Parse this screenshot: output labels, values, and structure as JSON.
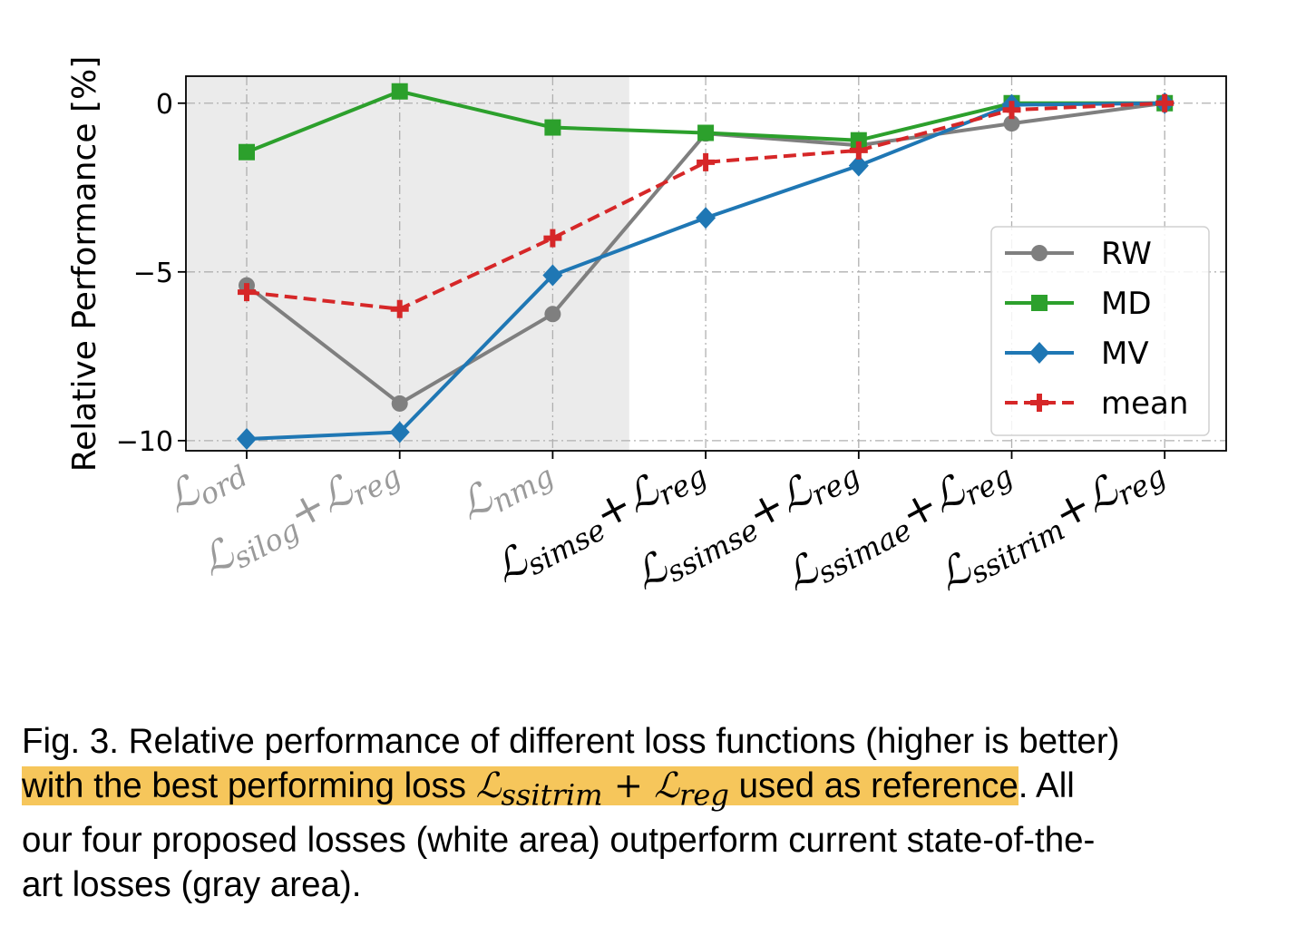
{
  "chart_data": {
    "type": "line",
    "title": "",
    "xlabel": "",
    "ylabel": "Relative Performance [%]",
    "ylim": [
      -10.3,
      0.8
    ],
    "yticks": [
      {
        "value": 0,
        "label": "0"
      },
      {
        "value": -5,
        "label": "−5"
      },
      {
        "value": -10,
        "label": "−10"
      }
    ],
    "categories": [
      {
        "main": "ℒ",
        "sub": "ord",
        "tail": "",
        "tail_sub": "",
        "state": "baseline"
      },
      {
        "main": "ℒ",
        "sub": "silog",
        "tail": "+ℒ",
        "tail_sub": "reg",
        "state": "baseline"
      },
      {
        "main": "ℒ",
        "sub": "nmg",
        "tail": "",
        "tail_sub": "",
        "state": "baseline"
      },
      {
        "main": "ℒ",
        "sub": "simse",
        "tail": "+ℒ",
        "tail_sub": "reg",
        "state": "proposed"
      },
      {
        "main": "ℒ",
        "sub": "ssimse",
        "tail": "+ℒ",
        "tail_sub": "reg",
        "state": "proposed"
      },
      {
        "main": "ℒ",
        "sub": "ssimae",
        "tail": "+ℒ",
        "tail_sub": "reg",
        "state": "proposed"
      },
      {
        "main": "ℒ",
        "sub": "ssitrim",
        "tail": "+ℒ",
        "tail_sub": "reg",
        "state": "proposed"
      }
    ],
    "shaded_region": {
      "from_category": 0,
      "to_category": 2,
      "color": "#ebebeb"
    },
    "series": [
      {
        "name": "RW",
        "color": "#7f7f7f",
        "marker": "circle",
        "dash": false,
        "values": [
          -5.4,
          -8.9,
          -6.25,
          -0.9,
          -1.25,
          -0.6,
          0
        ]
      },
      {
        "name": "MD",
        "color": "#2ca02c",
        "marker": "square",
        "dash": false,
        "values": [
          -1.45,
          0.35,
          -0.72,
          -0.88,
          -1.1,
          0,
          0
        ]
      },
      {
        "name": "MV",
        "color": "#1f77b4",
        "marker": "diamond",
        "dash": false,
        "values": [
          -9.95,
          -9.75,
          -5.1,
          -3.4,
          -1.85,
          -0.05,
          0
        ]
      },
      {
        "name": "mean",
        "color": "#d62728",
        "marker": "plus",
        "dash": true,
        "values": [
          -5.6,
          -6.1,
          -4.0,
          -1.75,
          -1.4,
          -0.2,
          0
        ]
      }
    ],
    "grid": true,
    "legend_position": "center-right"
  },
  "caption": {
    "line1": "Fig. 3. Relative performance of different loss functions (higher is better)",
    "line2_a": "with the best performing loss ",
    "line2_math_main": "ℒ",
    "line2_math_sub": "ssitrim",
    "line2_math_plus": " + ℒ",
    "line2_math_sub2": "reg",
    "line2_b": " used as reference",
    "line2_c": ". All",
    "line3": "our four proposed losses (white area) outperform current state-of-the-",
    "line4": "art losses (gray area)."
  },
  "colors": {
    "highlight": "#f6c65b",
    "baseline_label": "#9a9a9a",
    "proposed_label": "#000000"
  }
}
